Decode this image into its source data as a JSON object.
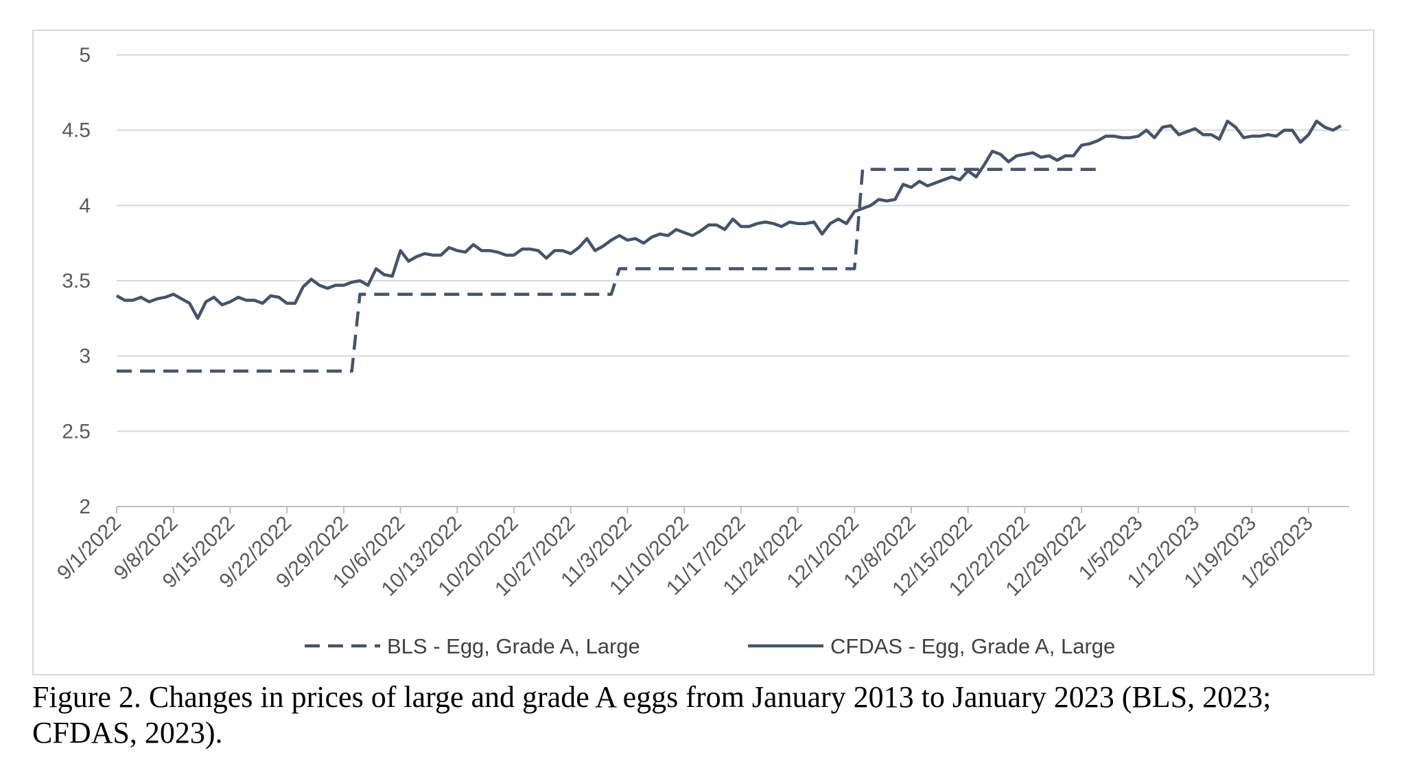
{
  "caption": "Figure 2. Changes in prices of large and grade A eggs from January 2013 to January 2023 (BLS, 2023; CFDAS, 2023).",
  "colors": {
    "series": "#44546a",
    "grid": "#d9d9d9",
    "axis": "#bfbfbf",
    "text": "#595959"
  },
  "chart_data": {
    "type": "line",
    "title": "",
    "xlabel": "",
    "ylabel": "",
    "ylim": [
      2,
      5
    ],
    "y_ticks": [
      "2",
      "2.5",
      "3",
      "3.5",
      "4",
      "4.5",
      "5"
    ],
    "x_ticks": [
      "9/1/2022",
      "9/8/2022",
      "9/15/2022",
      "9/22/2022",
      "9/29/2022",
      "10/6/2022",
      "10/13/2022",
      "10/20/2022",
      "10/27/2022",
      "11/3/2022",
      "11/10/2022",
      "11/17/2022",
      "11/24/2022",
      "12/1/2022",
      "12/8/2022",
      "12/15/2022",
      "12/22/2022",
      "12/29/2022",
      "1/5/2023",
      "1/12/2023",
      "1/19/2023",
      "1/26/2023"
    ],
    "x_range_days": [
      0,
      152
    ],
    "grid": true,
    "legend_position": "bottom",
    "series": [
      {
        "name": "BLS - Egg, Grade A, Large",
        "style": "dashed",
        "color": "#44546a",
        "points": [
          [
            0,
            2.9
          ],
          [
            29,
            2.9
          ],
          [
            30,
            3.41
          ],
          [
            61,
            3.41
          ],
          [
            62,
            3.58
          ],
          [
            91,
            3.58
          ],
          [
            92,
            4.24
          ],
          [
            121,
            4.24
          ]
        ]
      },
      {
        "name": "CFDAS - Egg, Grade A, Large",
        "style": "solid",
        "color": "#44546a",
        "points": [
          [
            0,
            3.4
          ],
          [
            1,
            3.37
          ],
          [
            2,
            3.37
          ],
          [
            3,
            3.39
          ],
          [
            4,
            3.36
          ],
          [
            5,
            3.38
          ],
          [
            6,
            3.39
          ],
          [
            7,
            3.41
          ],
          [
            8,
            3.38
          ],
          [
            9,
            3.35
          ],
          [
            10,
            3.25
          ],
          [
            11,
            3.36
          ],
          [
            12,
            3.39
          ],
          [
            13,
            3.34
          ],
          [
            14,
            3.36
          ],
          [
            15,
            3.39
          ],
          [
            16,
            3.37
          ],
          [
            17,
            3.37
          ],
          [
            18,
            3.35
          ],
          [
            19,
            3.4
          ],
          [
            20,
            3.39
          ],
          [
            21,
            3.35
          ],
          [
            22,
            3.35
          ],
          [
            23,
            3.46
          ],
          [
            24,
            3.51
          ],
          [
            25,
            3.47
          ],
          [
            26,
            3.45
          ],
          [
            27,
            3.47
          ],
          [
            28,
            3.47
          ],
          [
            29,
            3.49
          ],
          [
            30,
            3.5
          ],
          [
            31,
            3.47
          ],
          [
            32,
            3.58
          ],
          [
            33,
            3.54
          ],
          [
            34,
            3.53
          ],
          [
            35,
            3.7
          ],
          [
            36,
            3.63
          ],
          [
            37,
            3.66
          ],
          [
            38,
            3.68
          ],
          [
            39,
            3.67
          ],
          [
            40,
            3.67
          ],
          [
            41,
            3.72
          ],
          [
            42,
            3.7
          ],
          [
            43,
            3.69
          ],
          [
            44,
            3.74
          ],
          [
            45,
            3.7
          ],
          [
            46,
            3.7
          ],
          [
            47,
            3.69
          ],
          [
            48,
            3.67
          ],
          [
            49,
            3.67
          ],
          [
            50,
            3.71
          ],
          [
            51,
            3.71
          ],
          [
            52,
            3.7
          ],
          [
            53,
            3.65
          ],
          [
            54,
            3.7
          ],
          [
            55,
            3.7
          ],
          [
            56,
            3.68
          ],
          [
            57,
            3.72
          ],
          [
            58,
            3.78
          ],
          [
            59,
            3.7
          ],
          [
            60,
            3.73
          ],
          [
            61,
            3.77
          ],
          [
            62,
            3.8
          ],
          [
            63,
            3.77
          ],
          [
            64,
            3.78
          ],
          [
            65,
            3.75
          ],
          [
            66,
            3.79
          ],
          [
            67,
            3.81
          ],
          [
            68,
            3.8
          ],
          [
            69,
            3.84
          ],
          [
            70,
            3.82
          ],
          [
            71,
            3.8
          ],
          [
            72,
            3.83
          ],
          [
            73,
            3.87
          ],
          [
            74,
            3.87
          ],
          [
            75,
            3.84
          ],
          [
            76,
            3.91
          ],
          [
            77,
            3.86
          ],
          [
            78,
            3.86
          ],
          [
            79,
            3.88
          ],
          [
            80,
            3.89
          ],
          [
            81,
            3.88
          ],
          [
            82,
            3.86
          ],
          [
            83,
            3.89
          ],
          [
            84,
            3.88
          ],
          [
            85,
            3.88
          ],
          [
            86,
            3.89
          ],
          [
            87,
            3.81
          ],
          [
            88,
            3.88
          ],
          [
            89,
            3.91
          ],
          [
            90,
            3.88
          ],
          [
            91,
            3.96
          ],
          [
            92,
            3.98
          ],
          [
            93,
            4.0
          ],
          [
            94,
            4.04
          ],
          [
            95,
            4.03
          ],
          [
            96,
            4.04
          ],
          [
            97,
            4.14
          ],
          [
            98,
            4.12
          ],
          [
            99,
            4.16
          ],
          [
            100,
            4.13
          ],
          [
            101,
            4.15
          ],
          [
            102,
            4.17
          ],
          [
            103,
            4.19
          ],
          [
            104,
            4.17
          ],
          [
            105,
            4.23
          ],
          [
            106,
            4.19
          ],
          [
            107,
            4.27
          ],
          [
            108,
            4.36
          ],
          [
            109,
            4.34
          ],
          [
            110,
            4.29
          ],
          [
            111,
            4.33
          ],
          [
            112,
            4.34
          ],
          [
            113,
            4.35
          ],
          [
            114,
            4.32
          ],
          [
            115,
            4.33
          ],
          [
            116,
            4.3
          ],
          [
            117,
            4.33
          ],
          [
            118,
            4.33
          ],
          [
            119,
            4.4
          ],
          [
            120,
            4.41
          ],
          [
            121,
            4.43
          ],
          [
            122,
            4.46
          ],
          [
            123,
            4.46
          ],
          [
            124,
            4.45
          ],
          [
            125,
            4.45
          ],
          [
            126,
            4.46
          ],
          [
            127,
            4.5
          ],
          [
            128,
            4.45
          ],
          [
            129,
            4.52
          ],
          [
            130,
            4.53
          ],
          [
            131,
            4.47
          ],
          [
            132,
            4.49
          ],
          [
            133,
            4.51
          ],
          [
            134,
            4.47
          ],
          [
            135,
            4.47
          ],
          [
            136,
            4.44
          ],
          [
            137,
            4.56
          ],
          [
            138,
            4.52
          ],
          [
            139,
            4.45
          ],
          [
            140,
            4.46
          ],
          [
            141,
            4.46
          ],
          [
            142,
            4.47
          ],
          [
            143,
            4.46
          ],
          [
            144,
            4.5
          ],
          [
            145,
            4.5
          ],
          [
            146,
            4.42
          ],
          [
            147,
            4.47
          ],
          [
            148,
            4.56
          ],
          [
            149,
            4.52
          ],
          [
            150,
            4.5
          ],
          [
            151,
            4.53
          ]
        ]
      }
    ]
  }
}
